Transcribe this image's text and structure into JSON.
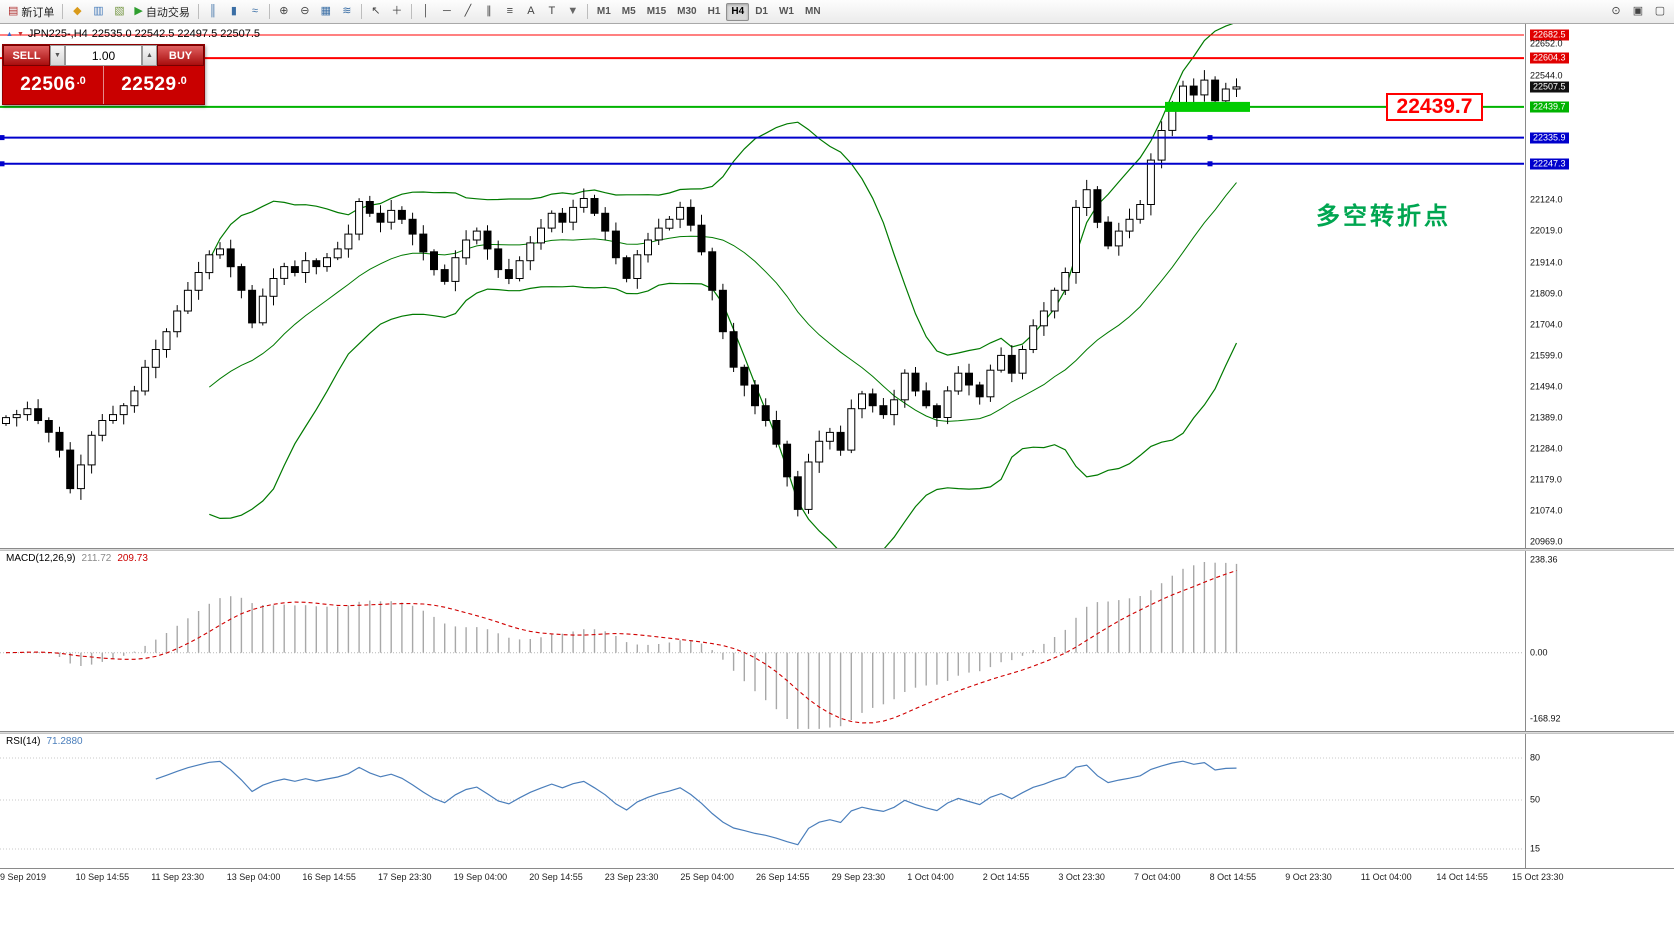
{
  "toolbar": {
    "buttons": [
      {
        "name": "new-order-button",
        "icon": "new-order-icon",
        "glyph": "▤",
        "glyph_color": "#b03030",
        "label": "新订单"
      },
      {
        "sep": true
      },
      {
        "name": "market-watch-button",
        "icon": "market-watch-icon",
        "glyph": "◆",
        "glyph_color": "#d99a1a"
      },
      {
        "name": "data-window-button",
        "icon": "data-window-icon",
        "glyph": "▥",
        "glyph_color": "#4a7ebb"
      },
      {
        "name": "terminal-button",
        "icon": "terminal-icon",
        "glyph": "▧",
        "glyph_color": "#7a9a4a"
      },
      {
        "name": "autotrading-button",
        "icon": "autotrading-play-icon",
        "glyph": "▶",
        "glyph_color": "#2e9e2e",
        "label": "自动交易"
      },
      {
        "sep": true
      },
      {
        "name": "bar-chart-button",
        "icon": "ohlc-bars-icon",
        "glyph": "║",
        "glyph_color": "#3a6ea5"
      },
      {
        "name": "candlestick-chart-button",
        "icon": "candlestick-icon",
        "glyph": "▮",
        "glyph_color": "#3a6ea5"
      },
      {
        "name": "line-chart-button",
        "icon": "line-chart-icon",
        "glyph": "≈",
        "glyph_color": "#3a6ea5"
      },
      {
        "sep": true
      },
      {
        "name": "zoom-in-button",
        "icon": "zoom-in-icon",
        "glyph": "⊕",
        "glyph_color": "#444444"
      },
      {
        "name": "zoom-out-button",
        "icon": "zoom-out-icon",
        "glyph": "⊖",
        "glyph_color": "#444444"
      },
      {
        "name": "grid-button",
        "icon": "grid-icon",
        "glyph": "▦",
        "glyph_color": "#3a6ea5"
      },
      {
        "name": "indicators-button",
        "icon": "indicators-icon",
        "glyph": "≋",
        "glyph_color": "#3a6ea5"
      },
      {
        "sep": true
      },
      {
        "name": "cursor-button",
        "icon": "cursor-arrow-icon",
        "glyph": "↖",
        "glyph_color": "#444444"
      },
      {
        "name": "crosshair-button",
        "icon": "crosshair-icon",
        "glyph": "＋",
        "glyph_color": "#444444"
      },
      {
        "sep": true
      },
      {
        "name": "vertical-line-button",
        "icon": "vertical-line-icon",
        "glyph": "│",
        "glyph_color": "#444444"
      },
      {
        "name": "horizontal-line-button",
        "icon": "horizontal-line-icon",
        "glyph": "─",
        "glyph_color": "#444444"
      },
      {
        "name": "trendline-button",
        "icon": "trendline-icon",
        "glyph": "╱",
        "glyph_color": "#444444"
      },
      {
        "name": "channel-button",
        "icon": "equidistant-channel-icon",
        "glyph": "∥",
        "glyph_color": "#444444"
      },
      {
        "name": "fibonacci-button",
        "icon": "fibonacci-icon",
        "glyph": "≡",
        "glyph_color": "#444444"
      },
      {
        "name": "text-button",
        "icon": "text-label-icon",
        "glyph": "A",
        "glyph_color": "#444444"
      },
      {
        "name": "arrows-button",
        "icon": "arrows-tool-icon",
        "glyph": "T",
        "glyph_color": "#444444"
      },
      {
        "name": "shapes-button",
        "icon": "shapes-dropdown-icon",
        "glyph": "▼",
        "glyph_color": "#666666"
      },
      {
        "sep": true
      }
    ],
    "timeframes": [
      "M1",
      "M5",
      "M15",
      "M30",
      "H1",
      "H4",
      "D1",
      "W1",
      "MN"
    ],
    "active_timeframe": "H4",
    "right_buttons": [
      {
        "name": "search-button",
        "icon": "search-icon",
        "glyph": "⊙",
        "glyph_color": "#444444"
      },
      {
        "name": "tile-windows-button",
        "icon": "tile-windows-icon",
        "glyph": "▣",
        "glyph_color": "#444444"
      },
      {
        "name": "new-chart-button",
        "icon": "new-window-icon",
        "glyph": "▢",
        "glyph_color": "#444444"
      }
    ]
  },
  "symbol_header": {
    "icon_up": "▲",
    "icon_down": "▼",
    "title": "JPN225-,H4",
    "ohlc": "22535.0 22542.5 22497.5 22507.5"
  },
  "trade_panel": {
    "sell_label": "SELL",
    "buy_label": "BUY",
    "volume": "1.00",
    "volume_down_icon": "▼",
    "volume_up_icon": "▲",
    "sell_price_main": "22506",
    "sell_price_frac": ".0",
    "buy_price_main": "22529",
    "buy_price_frac": ".0"
  },
  "annotations": {
    "price_callout": "22439.7",
    "turning_point": "多空转折点"
  },
  "chart_data": {
    "type": "candlestick",
    "symbol": "JPN225-",
    "timeframe": "H4",
    "current_ohlc": {
      "open": 22535.0,
      "high": 22542.5,
      "low": 22497.5,
      "close": 22507.5
    },
    "current_price": 22507.5,
    "price_axis_range": {
      "top": 22682.5,
      "bottom": 20969.0
    },
    "open_first": 21370,
    "closes": [
      21390,
      21400,
      21420,
      21380,
      21340,
      21280,
      21150,
      21230,
      21330,
      21380,
      21400,
      21430,
      21480,
      21560,
      21620,
      21680,
      21750,
      21820,
      21880,
      21940,
      21960,
      21900,
      21820,
      21710,
      21800,
      21860,
      21900,
      21880,
      21920,
      21900,
      21930,
      21960,
      22010,
      22120,
      22080,
      22050,
      22090,
      22060,
      22010,
      21950,
      21890,
      21850,
      21930,
      21990,
      22020,
      21960,
      21890,
      21860,
      21920,
      21980,
      22030,
      22080,
      22050,
      22100,
      22130,
      22080,
      22020,
      21930,
      21860,
      21940,
      21990,
      22030,
      22060,
      22100,
      22040,
      21950,
      21820,
      21680,
      21560,
      21500,
      21430,
      21380,
      21300,
      21190,
      21080,
      21240,
      21310,
      21340,
      21280,
      21420,
      21470,
      21430,
      21400,
      21450,
      21540,
      21480,
      21430,
      21390,
      21480,
      21540,
      21500,
      21460,
      21550,
      21600,
      21540,
      21620,
      21700,
      21750,
      21820,
      21880,
      22100,
      22160,
      22050,
      21970,
      22020,
      22060,
      22110,
      22260,
      22360,
      22450,
      22510,
      22480,
      22530,
      22460,
      22500,
      22507
    ],
    "x_labels": [
      "9 Sep 2019",
      "10 Sep 14:55",
      "11 Sep 23:30",
      "13 Sep 04:00",
      "16 Sep 14:55",
      "17 Sep 23:30",
      "19 Sep 04:00",
      "20 Sep 14:55",
      "23 Sep 23:30",
      "25 Sep 04:00",
      "26 Sep 14:55",
      "29 Sep 23:30",
      "1 Oct 04:00",
      "2 Oct 14:55",
      "3 Oct 23:30",
      "7 Oct 04:00",
      "8 Oct 14:55",
      "9 Oct 23:30",
      "11 Oct 04:00",
      "14 Oct 14:55",
      "15 Oct 23:30"
    ],
    "y_labels": [
      {
        "text": "22682.5",
        "price": 22682.5,
        "style": "red"
      },
      {
        "text": "22652.0",
        "price": 22652.0,
        "style": "plain"
      },
      {
        "text": "22604.3",
        "price": 22604.3,
        "style": "red"
      },
      {
        "text": "22544.0",
        "price": 22544.0,
        "style": "plain"
      },
      {
        "text": "22507.5",
        "price": 22507.5,
        "style": "black"
      },
      {
        "text": "22439.7",
        "price": 22439.7,
        "style": "green"
      },
      {
        "text": "22335.9",
        "price": 22335.9,
        "style": "blue"
      },
      {
        "text": "22247.3",
        "price": 22247.3,
        "style": "blue"
      },
      {
        "text": "22124.0",
        "price": 22124.0,
        "style": "plain"
      },
      {
        "text": "22019.0",
        "price": 22019.0,
        "style": "plain"
      },
      {
        "text": "21914.0",
        "price": 21914.0,
        "style": "plain"
      },
      {
        "text": "21809.0",
        "price": 21809.0,
        "style": "plain"
      },
      {
        "text": "21704.0",
        "price": 21704.0,
        "style": "plain"
      },
      {
        "text": "21599.0",
        "price": 21599.0,
        "style": "plain"
      },
      {
        "text": "21494.0",
        "price": 21494.0,
        "style": "plain"
      },
      {
        "text": "21389.0",
        "price": 21389.0,
        "style": "plain"
      },
      {
        "text": "21284.0",
        "price": 21284.0,
        "style": "plain"
      },
      {
        "text": "21179.0",
        "price": 21179.0,
        "style": "plain"
      },
      {
        "text": "21074.0",
        "price": 21074.0,
        "style": "plain"
      },
      {
        "text": "20969.0",
        "price": 20969.0,
        "style": "plain"
      }
    ],
    "hlines": [
      {
        "price": 22682.5,
        "color": "#ff0000",
        "width": 1,
        "handles": false
      },
      {
        "price": 22604.3,
        "color": "#ff0000",
        "width": 2,
        "handles": false
      },
      {
        "price": 22439.7,
        "color": "#00b300",
        "width": 2,
        "handles": false
      },
      {
        "price": 22335.9,
        "color": "#0000cc",
        "width": 2,
        "handles": true
      },
      {
        "price": 22247.3,
        "color": "#0000cc",
        "width": 2,
        "handles": true
      }
    ],
    "highlight_band": {
      "price": 22439.7,
      "color": "#00cc00"
    },
    "indicators": {
      "bollinger": {
        "period": 20,
        "deviation": 2,
        "color": "#007a00"
      },
      "macd": {
        "label": "MACD(12,26,9)",
        "value": "211.72",
        "signal": "209.73",
        "histogram_color": "#a8a8a8",
        "signal_color": "#d00000",
        "axis": [
          {
            "text": "238.36",
            "value": 238.36
          },
          {
            "text": "0.00",
            "value": 0
          },
          {
            "text": "-168.92",
            "value": -168.92
          }
        ]
      },
      "rsi": {
        "label": "RSI(14)",
        "value": "71.2880",
        "color": "#4a7ebb",
        "levels": [
          80,
          50,
          15
        ],
        "axis": [
          {
            "text": "80",
            "value": 80
          },
          {
            "text": "50",
            "value": 50
          },
          {
            "text": "15",
            "value": 15
          }
        ]
      }
    }
  }
}
